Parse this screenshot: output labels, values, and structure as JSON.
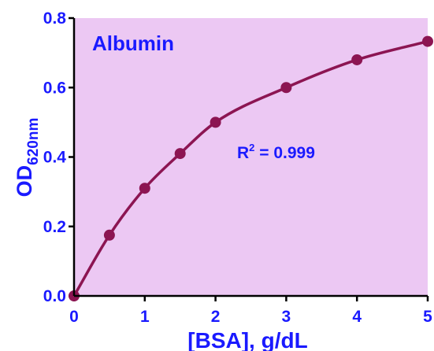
{
  "colors": {
    "plot_background": "#ecc8f3",
    "axis_text": "#1a1aff",
    "curve": "#8c1552",
    "annotation": "#1a1aff",
    "axis_line": "#000000"
  },
  "chart_data": {
    "type": "scatter",
    "title": "",
    "inset_label": "Albumin",
    "xlabel": "[BSA], g/dL",
    "ylabel": {
      "main": "OD",
      "subscript": "620nm"
    },
    "xlim": [
      0,
      5
    ],
    "ylim": [
      0,
      0.8
    ],
    "x_ticks": [
      0,
      1,
      2,
      3,
      4,
      5
    ],
    "y_ticks": [
      0.0,
      0.2,
      0.4,
      0.6,
      0.8
    ],
    "x_tick_labels": [
      "0",
      "1",
      "2",
      "3",
      "4",
      "5"
    ],
    "y_tick_labels": [
      "0.0",
      "0.2",
      "0.4",
      "0.6",
      "0.8"
    ],
    "grid": false,
    "series": [
      {
        "x": [
          0,
          0.5,
          1,
          1.5,
          2,
          3,
          4,
          5
        ],
        "y": [
          0.0,
          0.175,
          0.31,
          0.41,
          0.5,
          0.6,
          0.68,
          0.733
        ],
        "fit": "curve"
      }
    ],
    "annotation": {
      "main": "R",
      "superscript": "2",
      "rest": " = 0.999"
    }
  }
}
